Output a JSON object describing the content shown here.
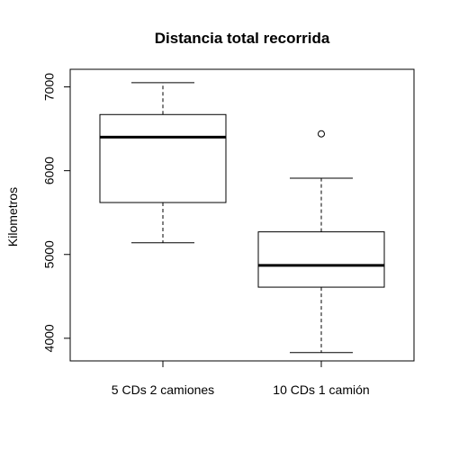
{
  "chart_data": {
    "type": "boxplot",
    "title": "Distancia total recorrida",
    "xlabel": "",
    "ylabel": "Kilometros",
    "categories": [
      "5 CDs 2 camiones",
      "10 CDs 1 camión"
    ],
    "boxes": [
      {
        "whisker_low": 5140,
        "q1": 5620,
        "median": 6400,
        "q3": 6670,
        "whisker_high": 7050,
        "outliers": []
      },
      {
        "whisker_low": 3830,
        "q1": 4610,
        "median": 4870,
        "q3": 5270,
        "whisker_high": 5910,
        "outliers": [
          6440
        ]
      }
    ],
    "y_ticks": [
      "4000",
      "5000",
      "6000",
      "7000"
    ],
    "ylim": [
      3730,
      7210
    ],
    "grid": false,
    "legend": "none",
    "colors": {
      "box_stroke": "#000000",
      "median": "#000000",
      "background": "#ffffff"
    }
  }
}
